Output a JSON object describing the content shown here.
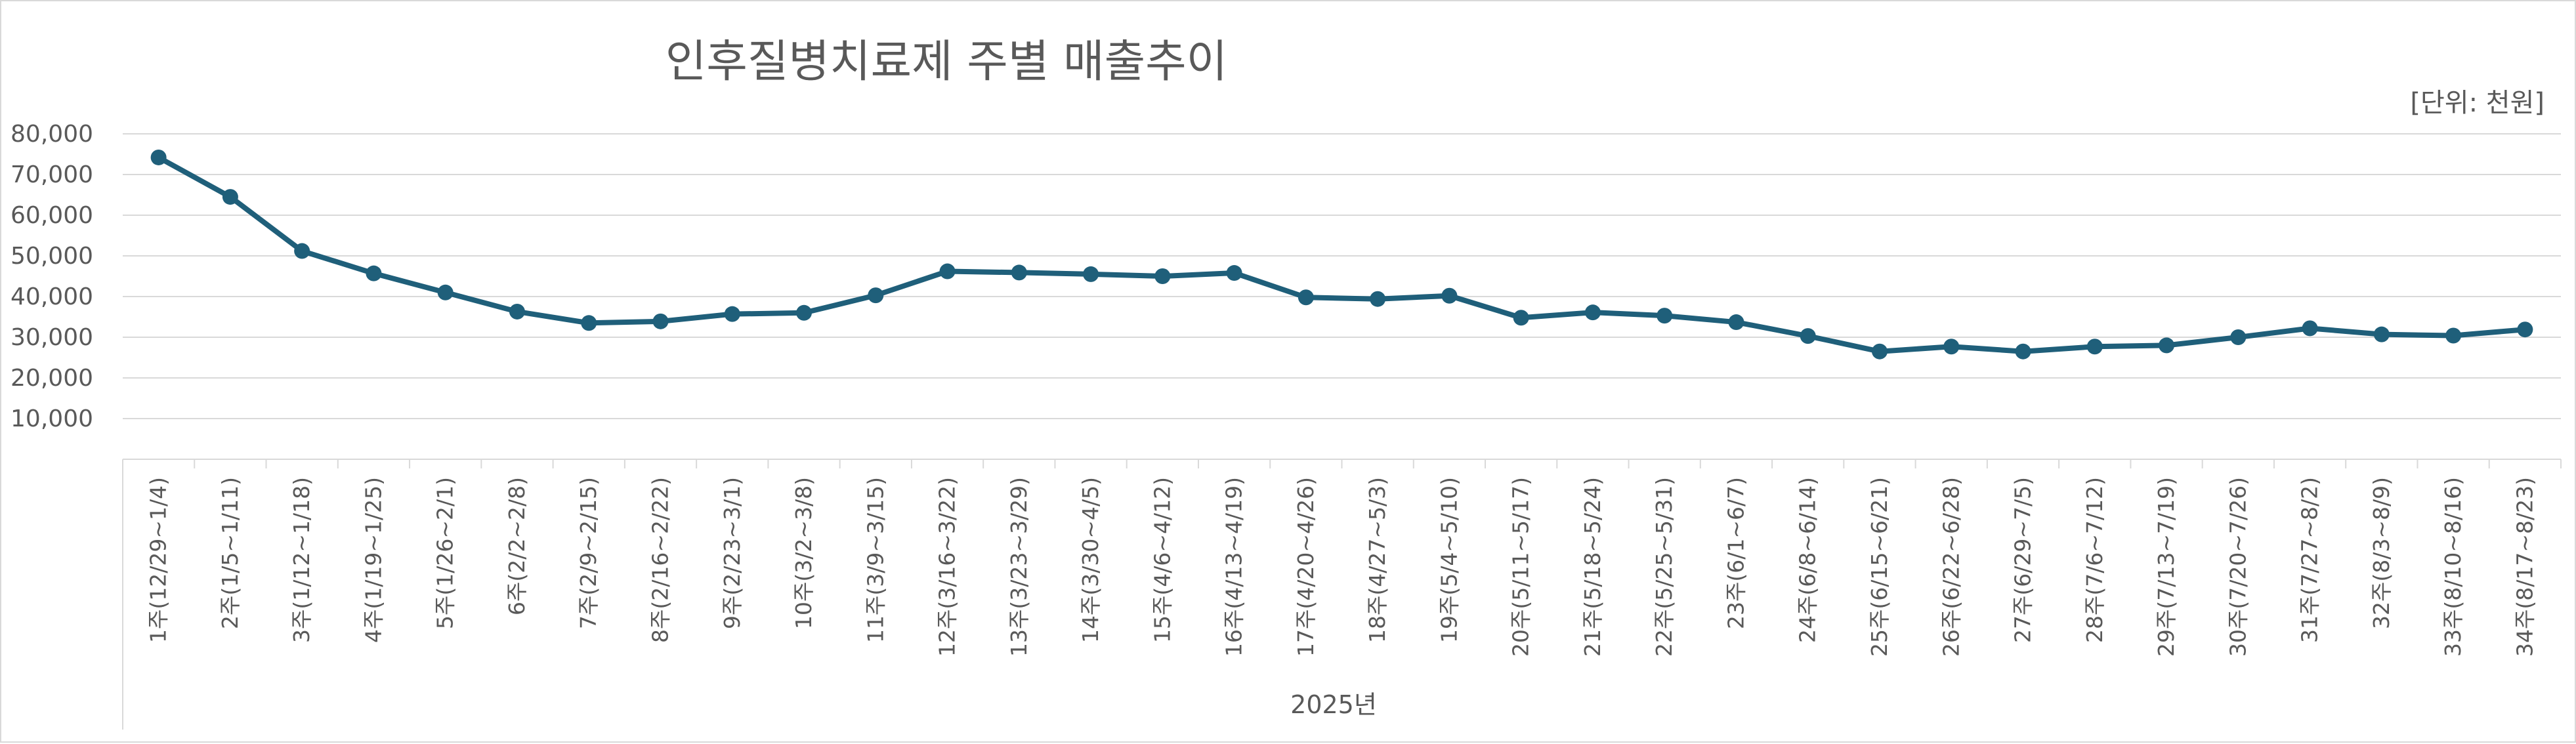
{
  "chart_data": {
    "type": "line",
    "title": "인후질병치료제 주별 매출추이",
    "unit_label": "[단위: 천원]",
    "xlabel": "2025년",
    "ylabel": "",
    "ylim": [
      0,
      80000
    ],
    "yticks": [
      10000,
      20000,
      30000,
      40000,
      50000,
      60000,
      70000,
      80000
    ],
    "ytick_labels": [
      "10,000",
      "20,000",
      "30,000",
      "40,000",
      "50,000",
      "60,000",
      "70,000",
      "80,000"
    ],
    "grid": true,
    "legend": "none",
    "color": "#1f5f7a",
    "categories": [
      "1주(12/29~1/4)",
      "2주(1/5~1/11)",
      "3주(1/12~1/18)",
      "4주(1/19~1/25)",
      "5주(1/26~2/1)",
      "6주(2/2~2/8)",
      "7주(2/9~2/15)",
      "8주(2/16~2/22)",
      "9주(2/23~3/1)",
      "10주(3/2~3/8)",
      "11주(3/9~3/15)",
      "12주(3/16~3/22)",
      "13주(3/23~3/29)",
      "14주(3/30~4/5)",
      "15주(4/6~4/12)",
      "16주(4/13~4/19)",
      "17주(4/20~4/26)",
      "18주(4/27~5/3)",
      "19주(5/4~5/10)",
      "20주(5/11~5/17)",
      "21주(5/18~5/24)",
      "22주(5/25~5/31)",
      "23주(6/1~6/7)",
      "24주(6/8~6/14)",
      "25주(6/15~6/21)",
      "26주(6/22~6/28)",
      "27주(6/29~7/5)",
      "28주(7/6~7/12)",
      "29주(7/13~7/19)",
      "30주(7/20~7/26)",
      "31주(7/27~8/2)",
      "32주(8/3~8/9)",
      "33주(8/10~8/16)",
      "34주(8/17~8/23)"
    ],
    "values": [
      74200,
      64500,
      51200,
      45700,
      41000,
      36300,
      33500,
      33900,
      35700,
      36000,
      40300,
      46200,
      45900,
      45500,
      45000,
      45800,
      39800,
      39400,
      40200,
      34800,
      36100,
      35300,
      33700,
      30300,
      26500,
      27700,
      26500,
      27700,
      28000,
      30000,
      32200,
      30700,
      30400,
      31900
    ]
  }
}
